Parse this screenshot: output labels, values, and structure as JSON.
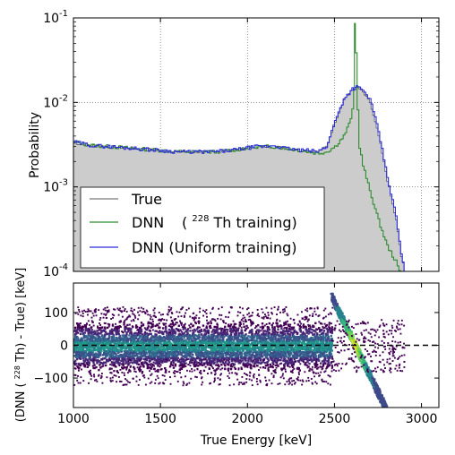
{
  "chart_data": [
    {
      "type": "line",
      "panel": "top",
      "ylabel": "Probability",
      "yscale": "log",
      "ylim": [
        0.0001,
        0.1
      ],
      "xlim": [
        1000,
        3100
      ],
      "xticks": [
        1000,
        1500,
        2000,
        2500,
        3000
      ],
      "ytick_labels": [
        {
          "value": 0.1,
          "base": "10",
          "exp": "-1"
        },
        {
          "value": 0.01,
          "base": "10",
          "exp": "-2"
        },
        {
          "value": 0.001,
          "base": "10",
          "exp": "-3"
        },
        {
          "value": 0.0001,
          "base": "10",
          "exp": "-4"
        }
      ],
      "grid": true,
      "legend_position": "lower-left",
      "series": [
        {
          "name": "True",
          "style": "filled-gray-step",
          "color": "#555555",
          "fill": "#cccccc",
          "x": [
            1000,
            1100,
            1200,
            1300,
            1400,
            1500,
            1600,
            1700,
            1800,
            1900,
            2000,
            2050,
            2100,
            2150,
            2200,
            2250,
            2300,
            2350,
            2400,
            2450,
            2500,
            2550,
            2600,
            2625,
            2650,
            2700,
            2750,
            2800,
            2850,
            2880,
            2900
          ],
          "y": [
            0.0033,
            0.0031,
            0.003,
            0.0029,
            0.0028,
            0.0027,
            0.0026,
            0.0026,
            0.0026,
            0.0027,
            0.0029,
            0.003,
            0.003,
            0.003,
            0.0029,
            0.0028,
            0.0027,
            0.0027,
            0.0026,
            0.003,
            0.006,
            0.011,
            0.014,
            0.015,
            0.014,
            0.01,
            0.004,
            0.0012,
            0.0004,
            0.00015,
            0.0001
          ]
        },
        {
          "name": "DNN",
          "label_parts": {
            "main": "DNN",
            "open": "(",
            "sup": "228",
            "rest": "Th training)"
          },
          "style": "step",
          "color": "#2e8b2e",
          "x": [
            1000,
            1100,
            1200,
            1300,
            1400,
            1500,
            1600,
            1700,
            1800,
            1900,
            2000,
            2050,
            2100,
            2150,
            2200,
            2250,
            2300,
            2350,
            2400,
            2450,
            2500,
            2550,
            2580,
            2600,
            2610,
            2615,
            2620,
            2630,
            2640,
            2660,
            2700,
            2750,
            2800,
            2850,
            2870,
            2880
          ],
          "y": [
            0.0034,
            0.0031,
            0.003,
            0.0029,
            0.0028,
            0.0027,
            0.0026,
            0.0026,
            0.0026,
            0.0027,
            0.0029,
            0.003,
            0.003,
            0.003,
            0.0029,
            0.0028,
            0.0027,
            0.0026,
            0.0025,
            0.0026,
            0.003,
            0.004,
            0.0055,
            0.008,
            0.014,
            0.085,
            0.04,
            0.008,
            0.003,
            0.0018,
            0.0009,
            0.0004,
            0.0002,
            0.00013,
            0.0001,
            0.0001
          ]
        },
        {
          "name": "DNN (Uniform training)",
          "style": "step",
          "color": "#2b2bdc",
          "x": [
            1000,
            1100,
            1200,
            1300,
            1400,
            1500,
            1600,
            1700,
            1800,
            1900,
            2000,
            2050,
            2100,
            2150,
            2200,
            2250,
            2300,
            2350,
            2400,
            2450,
            2500,
            2550,
            2600,
            2625,
            2650,
            2700,
            2750,
            2800,
            2850,
            2880,
            2900
          ],
          "y": [
            0.0034,
            0.0031,
            0.003,
            0.0029,
            0.0028,
            0.0027,
            0.0026,
            0.0026,
            0.0026,
            0.0027,
            0.0029,
            0.003,
            0.003,
            0.0031,
            0.0029,
            0.0028,
            0.0027,
            0.0027,
            0.0026,
            0.003,
            0.006,
            0.011,
            0.0145,
            0.0152,
            0.0145,
            0.011,
            0.0045,
            0.0013,
            0.00045,
            0.00016,
            0.0001
          ]
        }
      ]
    },
    {
      "type": "heatmap",
      "panel": "bottom",
      "xlabel": "True Energy [keV]",
      "ylabel_parts": {
        "pre": "(DNN (",
        "sup": "228",
        "post": "Th) - True) [keV]"
      },
      "xlim": [
        1000,
        3100
      ],
      "ylim": [
        -190,
        190
      ],
      "xticks": [
        1000,
        1500,
        2000,
        2500,
        3000
      ],
      "yticks": [
        -100,
        0,
        100
      ],
      "colormap": "viridis",
      "reference_line": {
        "y": 0,
        "style": "dashed",
        "color": "#000000"
      },
      "band": {
        "x_range": [
          1000,
          2480
        ],
        "core_half_width": 30,
        "outer_half_width": 60,
        "scatter_half_width": 120
      },
      "diagonal_feature": {
        "x_start": 2480,
        "y_start": 150,
        "x_end": 2790,
        "y_end": -190,
        "zero_crossing_x": 2615
      }
    }
  ]
}
